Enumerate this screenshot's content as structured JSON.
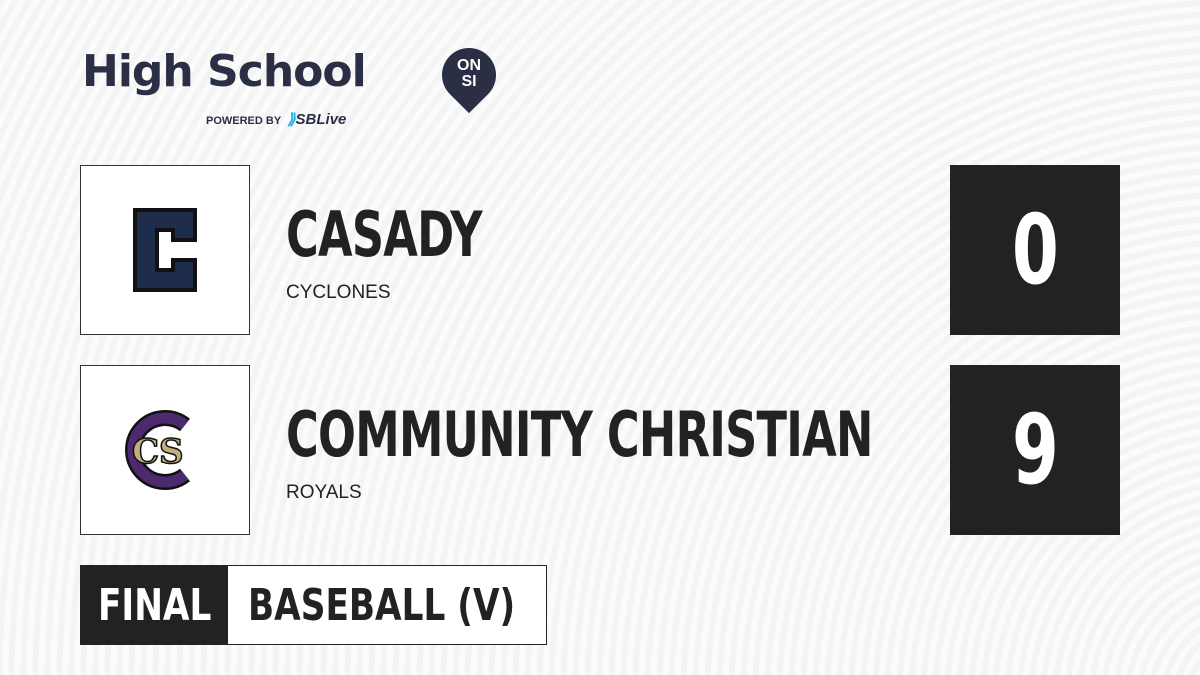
{
  "brand": {
    "title": "High School",
    "badge_top": "ON",
    "badge_bottom": "SI",
    "powered_by": "POWERED BY",
    "partner": "SBLive"
  },
  "teams": [
    {
      "name": "CASADY",
      "mascot": "CYCLONES",
      "score": "0",
      "logo_letter": "C",
      "logo_color": "#1f2d4d"
    },
    {
      "name": "COMMUNITY CHRISTIAN",
      "mascot": "ROYALS",
      "score": "9",
      "logo_letters": "CS",
      "logo_colors": [
        "#4b2a6e",
        "#c2ae7c"
      ]
    }
  ],
  "game": {
    "status": "FINAL",
    "sport": "BASEBALL (V)"
  }
}
